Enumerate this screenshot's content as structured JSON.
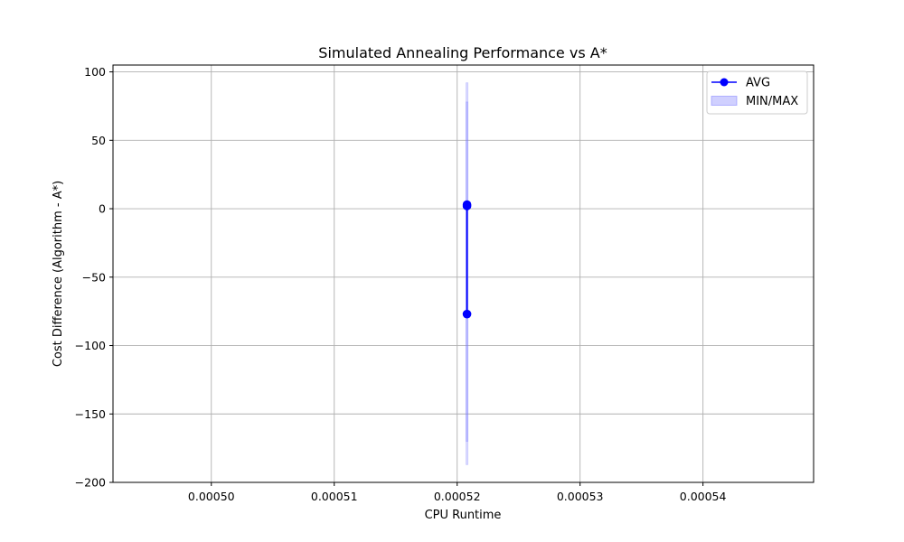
{
  "chart_data": {
    "type": "line",
    "title": "Simulated Annealing Performance vs A*",
    "xlabel": "CPU Runtime",
    "ylabel": "Cost Difference (Algorithm - A*)",
    "xlim": [
      0.000492,
      0.000549
    ],
    "ylim": [
      -200,
      105
    ],
    "x_ticks": [
      0.0005,
      0.00051,
      0.00052,
      0.00053,
      0.00054
    ],
    "x_tick_labels": [
      "0.00050",
      "0.00051",
      "0.00052",
      "0.00053",
      "0.00054"
    ],
    "y_ticks": [
      100,
      50,
      0,
      -50,
      -100,
      -150,
      -200
    ],
    "y_tick_labels": [
      "100",
      "50",
      "0",
      "−50",
      "−100",
      "−150",
      "−200"
    ],
    "grid": true,
    "legend_position": "top-right",
    "series": [
      {
        "name": "AVG",
        "color": "#0000ff",
        "marker": "circle",
        "points": [
          {
            "x": 0.0005208,
            "y": 3
          },
          {
            "x": 0.0005208,
            "y": 2
          },
          {
            "x": 0.0005208,
            "y": -77
          }
        ]
      }
    ],
    "band": {
      "name": "MIN/MAX",
      "color": "#7777ff",
      "x": 0.0005208,
      "ranges": [
        {
          "min": -187,
          "max": 92
        },
        {
          "min": -170,
          "max": 78
        }
      ]
    }
  }
}
